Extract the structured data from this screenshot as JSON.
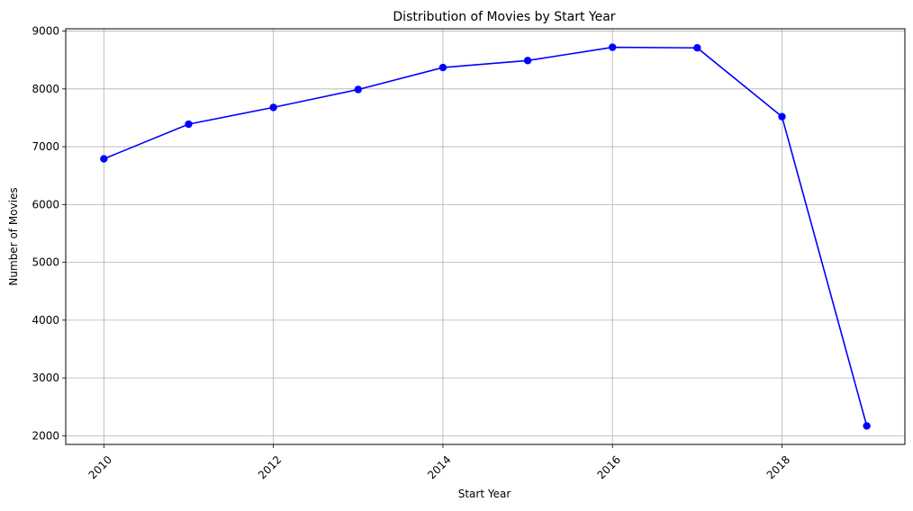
{
  "chart_data": {
    "type": "line",
    "title": "Distribution of Movies by Start Year",
    "xlabel": "Start Year",
    "ylabel": "Number of Movies",
    "x": [
      2010,
      2011,
      2012,
      2013,
      2014,
      2015,
      2016,
      2017,
      2018,
      2019
    ],
    "series": [
      {
        "values": [
          6790,
          7390,
          7680,
          7990,
          8370,
          8490,
          8720,
          8710,
          7520,
          2170
        ],
        "color": "#0000ff",
        "marker": "circle"
      }
    ],
    "xlim": [
      2009.55,
      2019.45
    ],
    "ylim": [
      1850,
      9040
    ],
    "xticks": [
      2010,
      2012,
      2014,
      2016,
      2018
    ],
    "xtick_labels": [
      "2010",
      "2012",
      "2014",
      "2016",
      "2018"
    ],
    "yticks": [
      2000,
      3000,
      4000,
      5000,
      6000,
      7000,
      8000,
      9000
    ],
    "ytick_labels": [
      "2000",
      "3000",
      "4000",
      "5000",
      "6000",
      "7000",
      "8000",
      "9000"
    ],
    "xtick_rotation": 45,
    "grid": true,
    "grid_color": "#b0b0b0"
  }
}
